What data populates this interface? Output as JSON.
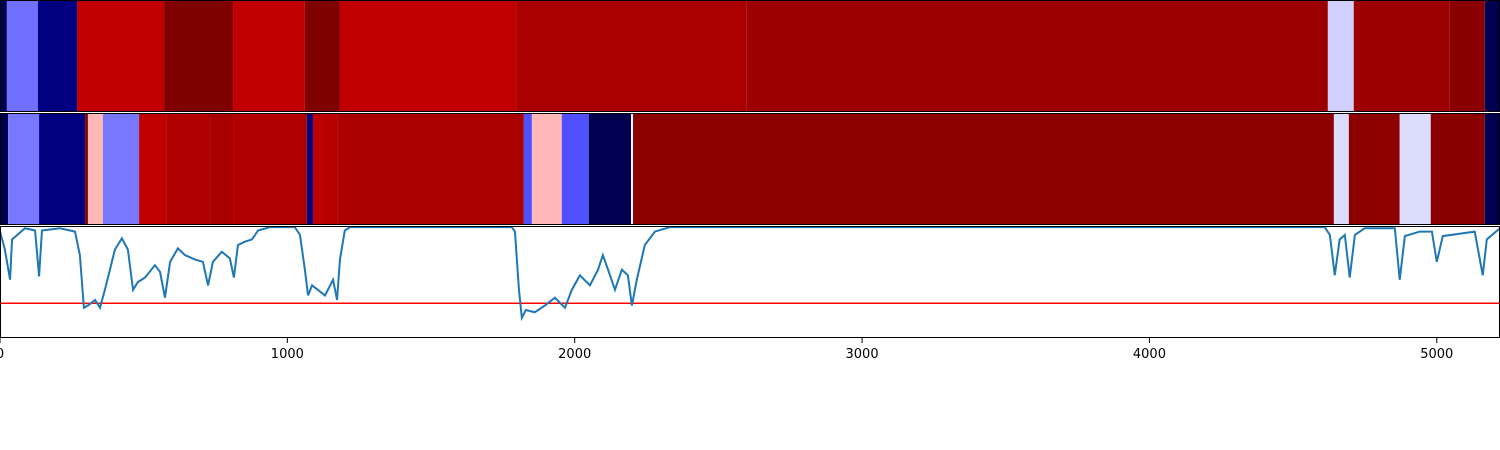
{
  "chart_data": [
    {
      "type": "heatmap",
      "xlim": [
        0,
        5220
      ],
      "edges": [
        0,
        24,
        132,
        268,
        571,
        811,
        1061,
        1183,
        1799,
        2599,
        4621,
        4711,
        5045,
        5167,
        5220
      ],
      "colors": [
        "#000050",
        "#7070ff",
        "#000080",
        "#c00000",
        "#800000",
        "#c00000",
        "#800000",
        "#c00000",
        "#aa0000",
        "#9c0000",
        "#d0d0ff",
        "#9c0000",
        "#8a0000",
        "#000050"
      ]
    },
    {
      "type": "heatmap",
      "xlim": [
        0,
        5220
      ],
      "edges": [
        0,
        28,
        136,
        296,
        306,
        358,
        484,
        578,
        731,
        811,
        1068,
        1089,
        1124,
        1176,
        1823,
        1851,
        1955,
        2049,
        2196,
        2203,
        4642,
        4694,
        4871,
        4979,
        5167,
        5220
      ],
      "colors": [
        "#000050",
        "#7878ff",
        "#000080",
        "#800000",
        "#ffb8b8",
        "#7878ff",
        "#c00000",
        "#b00000",
        "#a80000",
        "#b00000",
        "#000080",
        "#c00000",
        "#b80000",
        "#aa0000",
        "#5050ff",
        "#ffb8b8",
        "#5050ff",
        "#000050",
        "#ffffff",
        "#8c0000",
        "#dcdcff",
        "#8c0000",
        "#dcdcff",
        "#8a0000",
        "#000050"
      ]
    },
    {
      "type": "line",
      "xlim": [
        0,
        5220
      ],
      "ylim": [
        0,
        1
      ],
      "xticks": [
        0,
        1000,
        2000,
        3000,
        4000,
        5000
      ],
      "color": "#1f77b4",
      "x": [
        0,
        17,
        35,
        42,
        87,
        122,
        136,
        146,
        209,
        261,
        278,
        292,
        306,
        331,
        348,
        365,
        400,
        424,
        445,
        463,
        480,
        505,
        539,
        557,
        574,
        592,
        619,
        644,
        679,
        706,
        724,
        741,
        772,
        800,
        814,
        828,
        852,
        877,
        898,
        939,
        1026,
        1044,
        1061,
        1072,
        1086,
        1106,
        1131,
        1159,
        1173,
        1183,
        1200,
        1218,
        1781,
        1792,
        1806,
        1816,
        1830,
        1861,
        1896,
        1931,
        1966,
        1990,
        2018,
        2053,
        2081,
        2098,
        2116,
        2140,
        2164,
        2185,
        2199,
        2216,
        2244,
        2279,
        2331,
        4610,
        4628,
        4645,
        4662,
        4680,
        4697,
        4715,
        4749,
        4854,
        4871,
        4889,
        4941,
        4983,
        5000,
        5021,
        5132,
        5160,
        5174,
        5220
      ],
      "values": [
        0.95,
        0.79,
        0.52,
        0.88,
        0.98,
        0.96,
        0.55,
        0.96,
        0.98,
        0.95,
        0.74,
        0.27,
        0.29,
        0.34,
        0.27,
        0.43,
        0.79,
        0.89,
        0.79,
        0.43,
        0.5,
        0.54,
        0.65,
        0.59,
        0.36,
        0.68,
        0.8,
        0.74,
        0.7,
        0.68,
        0.47,
        0.68,
        0.77,
        0.71,
        0.54,
        0.83,
        0.86,
        0.88,
        0.96,
        0.99,
        0.99,
        0.92,
        0.61,
        0.38,
        0.47,
        0.43,
        0.38,
        0.52,
        0.34,
        0.7,
        0.96,
        0.99,
        0.99,
        0.95,
        0.43,
        0.18,
        0.25,
        0.23,
        0.29,
        0.36,
        0.27,
        0.43,
        0.56,
        0.47,
        0.61,
        0.74,
        0.61,
        0.43,
        0.61,
        0.56,
        0.29,
        0.52,
        0.83,
        0.95,
        0.99,
        0.99,
        0.92,
        0.56,
        0.88,
        0.92,
        0.54,
        0.92,
        0.98,
        0.98,
        0.52,
        0.91,
        0.95,
        0.95,
        0.68,
        0.91,
        0.95,
        0.56,
        0.88,
        0.98
      ],
      "hline": {
        "value": 0.31,
        "color": "#ff0000"
      }
    }
  ]
}
